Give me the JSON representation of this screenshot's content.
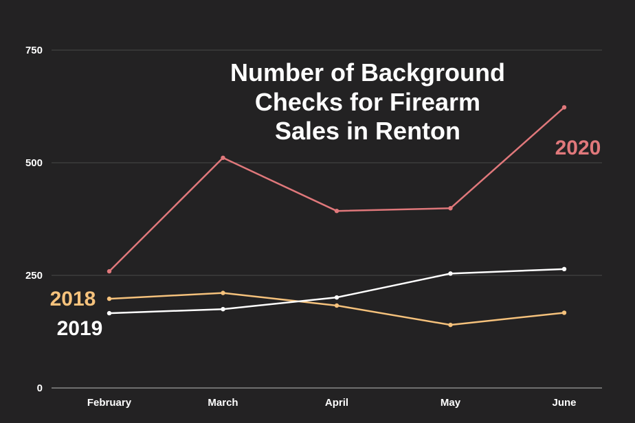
{
  "chart_data": {
    "type": "line",
    "title_lines": [
      "Number of Background",
      "Checks for Firearm",
      "Sales in Renton"
    ],
    "xlabel": "",
    "ylabel": "",
    "categories": [
      "February",
      "March",
      "April",
      "May",
      "June"
    ],
    "ylim": [
      0,
      750
    ],
    "yticks": [
      0,
      250,
      500,
      750
    ],
    "grid": true,
    "series": [
      {
        "name": "2020",
        "color": "#e0787b",
        "values": [
          259,
          511,
          393,
          399,
          623
        ]
      },
      {
        "name": "2018",
        "color": "#f6c27c",
        "values": [
          198,
          211,
          183,
          140,
          167
        ]
      },
      {
        "name": "2019",
        "color": "#ffffff",
        "values": [
          166,
          175,
          201,
          254,
          264
        ]
      }
    ]
  }
}
